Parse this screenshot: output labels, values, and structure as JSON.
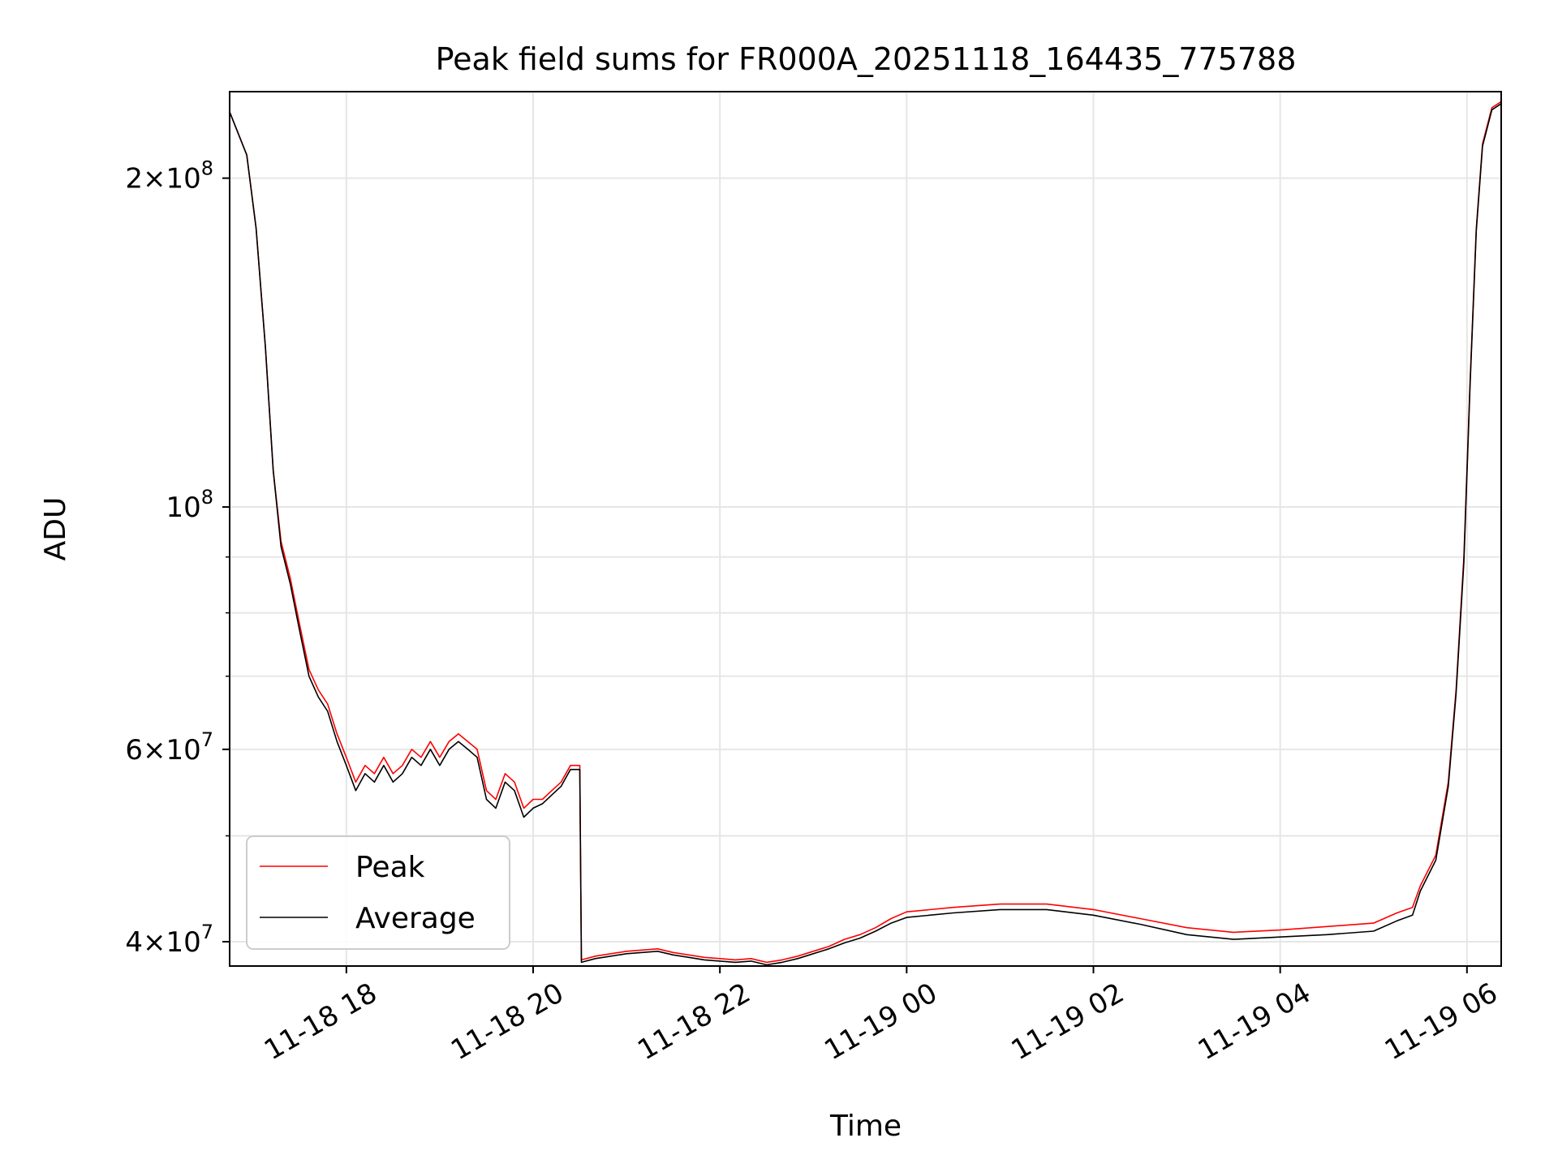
{
  "chart_data": {
    "type": "line",
    "title": "Peak field sums for FR000A_20251118_164435_775788",
    "xlabel": "Time",
    "ylabel": "ADU",
    "yscale": "log",
    "grid": true,
    "legend_position": "lower-left",
    "xlim": [
      "2025-11-18 16:45",
      "2025-11-19 06:22"
    ],
    "ylim": [
      38000000,
      240000000
    ],
    "x_ticks": [
      {
        "value": "2025-11-18 18:00",
        "label": "11-18 18"
      },
      {
        "value": "2025-11-18 20:00",
        "label": "11-18 20"
      },
      {
        "value": "2025-11-18 22:00",
        "label": "11-18 22"
      },
      {
        "value": "2025-11-19 00:00",
        "label": "11-19 00"
      },
      {
        "value": "2025-11-19 02:00",
        "label": "11-19 02"
      },
      {
        "value": "2025-11-19 04:00",
        "label": "11-19 04"
      },
      {
        "value": "2025-11-19 06:00",
        "label": "11-19 06"
      }
    ],
    "y_ticks": [
      {
        "value": 40000000,
        "mantissa": "4",
        "exponent": "7"
      },
      {
        "value": 60000000,
        "mantissa": "6",
        "exponent": "7"
      },
      {
        "value": 100000000,
        "mantissa": "",
        "exponent": "8"
      },
      {
        "value": 200000000,
        "mantissa": "2",
        "exponent": "8"
      }
    ],
    "y_minor_ticks": [
      50000000,
      70000000,
      80000000,
      90000000
    ],
    "series": [
      {
        "name": "Peak",
        "color": "#ff0000",
        "points": [
          [
            "2025-11-18 16:45",
            230000000
          ],
          [
            "2025-11-18 16:56",
            210000000
          ],
          [
            "2025-11-18 17:02",
            180000000
          ],
          [
            "2025-11-18 17:08",
            140000000
          ],
          [
            "2025-11-18 17:13",
            108000000
          ],
          [
            "2025-11-18 17:18",
            93000000
          ],
          [
            "2025-11-18 17:24",
            86000000
          ],
          [
            "2025-11-18 17:30",
            78000000
          ],
          [
            "2025-11-18 17:36",
            71000000
          ],
          [
            "2025-11-18 17:42",
            68000000
          ],
          [
            "2025-11-18 17:48",
            66000000
          ],
          [
            "2025-11-18 17:54",
            62000000
          ],
          [
            "2025-11-18 18:00",
            59000000
          ],
          [
            "2025-11-18 18:06",
            56000000
          ],
          [
            "2025-11-18 18:12",
            58000000
          ],
          [
            "2025-11-18 18:18",
            57000000
          ],
          [
            "2025-11-18 18:24",
            59000000
          ],
          [
            "2025-11-18 18:30",
            57000000
          ],
          [
            "2025-11-18 18:36",
            58000000
          ],
          [
            "2025-11-18 18:42",
            60000000
          ],
          [
            "2025-11-18 18:48",
            59000000
          ],
          [
            "2025-11-18 18:54",
            61000000
          ],
          [
            "2025-11-18 19:00",
            59000000
          ],
          [
            "2025-11-18 19:06",
            61000000
          ],
          [
            "2025-11-18 19:12",
            62000000
          ],
          [
            "2025-11-18 19:18",
            61000000
          ],
          [
            "2025-11-18 19:24",
            60000000
          ],
          [
            "2025-11-18 19:30",
            55000000
          ],
          [
            "2025-11-18 19:36",
            54000000
          ],
          [
            "2025-11-18 19:42",
            57000000
          ],
          [
            "2025-11-18 19:48",
            56000000
          ],
          [
            "2025-11-18 19:54",
            53000000
          ],
          [
            "2025-11-18 20:00",
            54000000
          ],
          [
            "2025-11-18 20:06",
            54000000
          ],
          [
            "2025-11-18 20:12",
            55000000
          ],
          [
            "2025-11-18 20:18",
            56000000
          ],
          [
            "2025-11-18 20:24",
            58000000
          ],
          [
            "2025-11-18 20:30",
            58000000
          ],
          [
            "2025-11-18 20:31",
            38500000
          ],
          [
            "2025-11-18 20:40",
            38800000
          ],
          [
            "2025-11-18 20:50",
            39000000
          ],
          [
            "2025-11-18 21:00",
            39200000
          ],
          [
            "2025-11-18 21:10",
            39300000
          ],
          [
            "2025-11-18 21:20",
            39400000
          ],
          [
            "2025-11-18 21:30",
            39100000
          ],
          [
            "2025-11-18 21:40",
            38900000
          ],
          [
            "2025-11-18 21:50",
            38700000
          ],
          [
            "2025-11-18 22:00",
            38600000
          ],
          [
            "2025-11-18 22:10",
            38500000
          ],
          [
            "2025-11-18 22:20",
            38600000
          ],
          [
            "2025-11-18 22:30",
            38300000
          ],
          [
            "2025-11-18 22:40",
            38500000
          ],
          [
            "2025-11-18 22:50",
            38800000
          ],
          [
            "2025-11-18 23:00",
            39200000
          ],
          [
            "2025-11-18 23:10",
            39600000
          ],
          [
            "2025-11-18 23:20",
            40200000
          ],
          [
            "2025-11-18 23:30",
            40600000
          ],
          [
            "2025-11-18 23:40",
            41200000
          ],
          [
            "2025-11-18 23:50",
            42000000
          ],
          [
            "2025-11-19 00:00",
            42600000
          ],
          [
            "2025-11-19 00:30",
            43000000
          ],
          [
            "2025-11-19 01:00",
            43300000
          ],
          [
            "2025-11-19 01:30",
            43300000
          ],
          [
            "2025-11-19 02:00",
            42800000
          ],
          [
            "2025-11-19 02:30",
            42000000
          ],
          [
            "2025-11-19 03:00",
            41200000
          ],
          [
            "2025-11-19 03:30",
            40800000
          ],
          [
            "2025-11-19 04:00",
            41000000
          ],
          [
            "2025-11-19 04:30",
            41300000
          ],
          [
            "2025-11-19 05:00",
            41600000
          ],
          [
            "2025-11-19 05:15",
            42500000
          ],
          [
            "2025-11-19 05:25",
            43000000
          ],
          [
            "2025-11-19 05:30",
            45000000
          ],
          [
            "2025-11-19 05:40",
            48000000
          ],
          [
            "2025-11-19 05:48",
            56000000
          ],
          [
            "2025-11-19 05:53",
            68000000
          ],
          [
            "2025-11-19 05:58",
            90000000
          ],
          [
            "2025-11-19 06:02",
            130000000
          ],
          [
            "2025-11-19 06:06",
            180000000
          ],
          [
            "2025-11-19 06:10",
            215000000
          ],
          [
            "2025-11-19 06:16",
            232000000
          ],
          [
            "2025-11-19 06:22",
            235000000
          ]
        ]
      },
      {
        "name": "Average",
        "color": "#000000",
        "points": [
          [
            "2025-11-18 16:45",
            230000000
          ],
          [
            "2025-11-18 16:56",
            210000000
          ],
          [
            "2025-11-18 17:02",
            180000000
          ],
          [
            "2025-11-18 17:08",
            140000000
          ],
          [
            "2025-11-18 17:13",
            108000000
          ],
          [
            "2025-11-18 17:18",
            92000000
          ],
          [
            "2025-11-18 17:24",
            85000000
          ],
          [
            "2025-11-18 17:30",
            77000000
          ],
          [
            "2025-11-18 17:36",
            70000000
          ],
          [
            "2025-11-18 17:42",
            67000000
          ],
          [
            "2025-11-18 17:48",
            65000000
          ],
          [
            "2025-11-18 17:54",
            61000000
          ],
          [
            "2025-11-18 18:00",
            58000000
          ],
          [
            "2025-11-18 18:06",
            55000000
          ],
          [
            "2025-11-18 18:12",
            57000000
          ],
          [
            "2025-11-18 18:18",
            56000000
          ],
          [
            "2025-11-18 18:24",
            58000000
          ],
          [
            "2025-11-18 18:30",
            56000000
          ],
          [
            "2025-11-18 18:36",
            57000000
          ],
          [
            "2025-11-18 18:42",
            59000000
          ],
          [
            "2025-11-18 18:48",
            58000000
          ],
          [
            "2025-11-18 18:54",
            60000000
          ],
          [
            "2025-11-18 19:00",
            58000000
          ],
          [
            "2025-11-18 19:06",
            60000000
          ],
          [
            "2025-11-18 19:12",
            61000000
          ],
          [
            "2025-11-18 19:18",
            60000000
          ],
          [
            "2025-11-18 19:24",
            59000000
          ],
          [
            "2025-11-18 19:30",
            54000000
          ],
          [
            "2025-11-18 19:36",
            53000000
          ],
          [
            "2025-11-18 19:42",
            56000000
          ],
          [
            "2025-11-18 19:48",
            55000000
          ],
          [
            "2025-11-18 19:54",
            52000000
          ],
          [
            "2025-11-18 20:00",
            53000000
          ],
          [
            "2025-11-18 20:06",
            53500000
          ],
          [
            "2025-11-18 20:12",
            54500000
          ],
          [
            "2025-11-18 20:18",
            55500000
          ],
          [
            "2025-11-18 20:24",
            57500000
          ],
          [
            "2025-11-18 20:30",
            57500000
          ],
          [
            "2025-11-18 20:31",
            38300000
          ],
          [
            "2025-11-18 20:40",
            38600000
          ],
          [
            "2025-11-18 20:50",
            38800000
          ],
          [
            "2025-11-18 21:00",
            39000000
          ],
          [
            "2025-11-18 21:10",
            39100000
          ],
          [
            "2025-11-18 21:20",
            39200000
          ],
          [
            "2025-11-18 21:30",
            38900000
          ],
          [
            "2025-11-18 21:40",
            38700000
          ],
          [
            "2025-11-18 21:50",
            38500000
          ],
          [
            "2025-11-18 22:00",
            38400000
          ],
          [
            "2025-11-18 22:10",
            38300000
          ],
          [
            "2025-11-18 22:20",
            38400000
          ],
          [
            "2025-11-18 22:30",
            38100000
          ],
          [
            "2025-11-18 22:40",
            38300000
          ],
          [
            "2025-11-18 22:50",
            38600000
          ],
          [
            "2025-11-18 23:00",
            39000000
          ],
          [
            "2025-11-18 23:10",
            39400000
          ],
          [
            "2025-11-18 23:20",
            39900000
          ],
          [
            "2025-11-18 23:30",
            40300000
          ],
          [
            "2025-11-18 23:40",
            40900000
          ],
          [
            "2025-11-18 23:50",
            41600000
          ],
          [
            "2025-11-19 00:00",
            42100000
          ],
          [
            "2025-11-19 00:30",
            42500000
          ],
          [
            "2025-11-19 01:00",
            42800000
          ],
          [
            "2025-11-19 01:30",
            42800000
          ],
          [
            "2025-11-19 02:00",
            42300000
          ],
          [
            "2025-11-19 02:30",
            41500000
          ],
          [
            "2025-11-19 03:00",
            40600000
          ],
          [
            "2025-11-19 03:30",
            40200000
          ],
          [
            "2025-11-19 04:00",
            40400000
          ],
          [
            "2025-11-19 04:30",
            40600000
          ],
          [
            "2025-11-19 05:00",
            40900000
          ],
          [
            "2025-11-19 05:15",
            41800000
          ],
          [
            "2025-11-19 05:25",
            42300000
          ],
          [
            "2025-11-19 05:30",
            44500000
          ],
          [
            "2025-11-19 05:40",
            47500000
          ],
          [
            "2025-11-19 05:48",
            55500000
          ],
          [
            "2025-11-19 05:53",
            67500000
          ],
          [
            "2025-11-19 05:58",
            89000000
          ],
          [
            "2025-11-19 06:02",
            129000000
          ],
          [
            "2025-11-19 06:06",
            179000000
          ],
          [
            "2025-11-19 06:10",
            214000000
          ],
          [
            "2025-11-19 06:16",
            231000000
          ],
          [
            "2025-11-19 06:22",
            234000000
          ]
        ]
      }
    ]
  }
}
